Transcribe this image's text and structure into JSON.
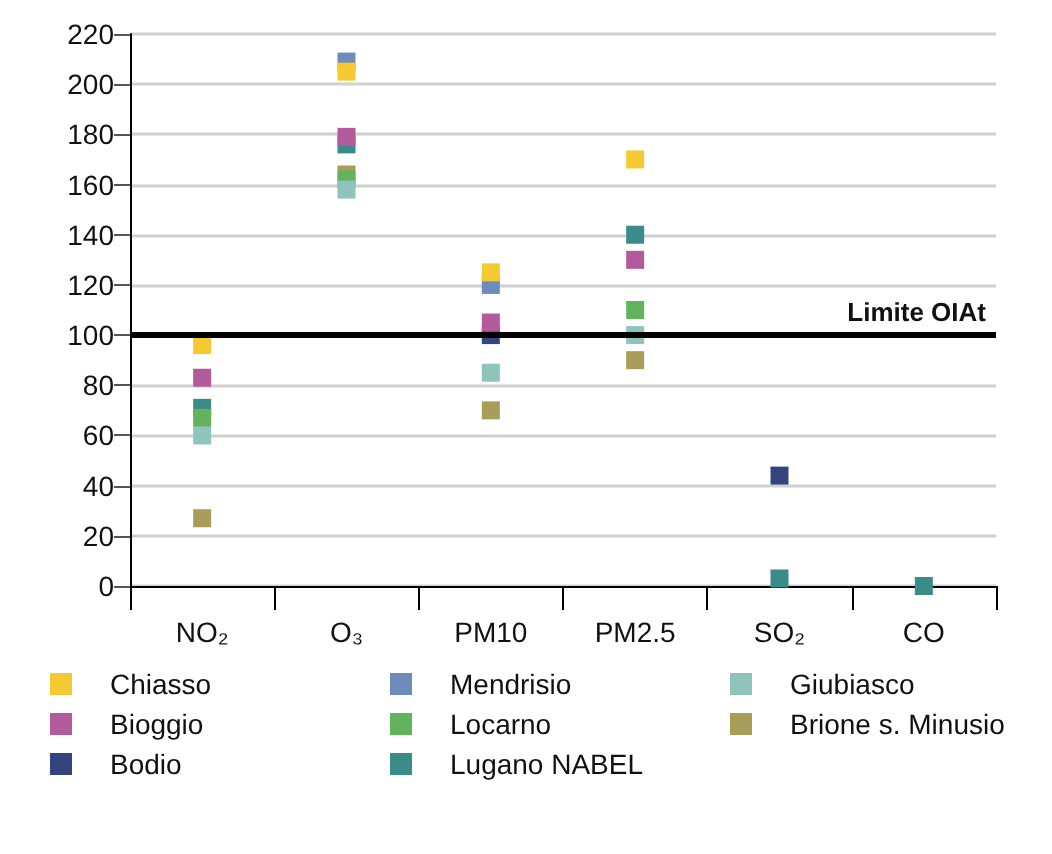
{
  "chart_data": {
    "type": "scatter",
    "categories": [
      "NO₂",
      "O₃",
      "PM10",
      "PM2.5",
      "SO₂",
      "CO"
    ],
    "series": [
      {
        "name": "Chiasso",
        "color": "#f6c932",
        "values": [
          96,
          205,
          125,
          170,
          null,
          null
        ]
      },
      {
        "name": "Mendrisio",
        "color": "#6c8cbc",
        "values": [
          null,
          209,
          120,
          null,
          null,
          null
        ]
      },
      {
        "name": "Giubiasco",
        "color": "#8ec4bc",
        "values": [
          60,
          158,
          85,
          100,
          null,
          null
        ]
      },
      {
        "name": "Bioggio",
        "color": "#b25a9c",
        "values": [
          83,
          179,
          105,
          130,
          null,
          null
        ]
      },
      {
        "name": "Locarno",
        "color": "#62b45c",
        "values": [
          67,
          162,
          null,
          110,
          null,
          null
        ]
      },
      {
        "name": "Brione s. Minusio",
        "color": "#a89e5a",
        "values": [
          27,
          164,
          70,
          90,
          null,
          null
        ]
      },
      {
        "name": "Bodio",
        "color": "#34447f",
        "values": [
          null,
          null,
          100,
          null,
          44,
          null
        ]
      },
      {
        "name": "Lugano NABEL",
        "color": "#3a8c88",
        "values": [
          71,
          176,
          null,
          140,
          3,
          0
        ]
      }
    ],
    "ylim": [
      0,
      220
    ],
    "yticks": [
      0,
      20,
      40,
      60,
      80,
      100,
      120,
      140,
      160,
      180,
      200,
      220
    ],
    "ref_lines": [
      {
        "axis": "y",
        "value": 100,
        "label": "Limite OIAt",
        "color": "#000000"
      }
    ],
    "grid": "y",
    "legend": "bottom",
    "marker": "square"
  }
}
